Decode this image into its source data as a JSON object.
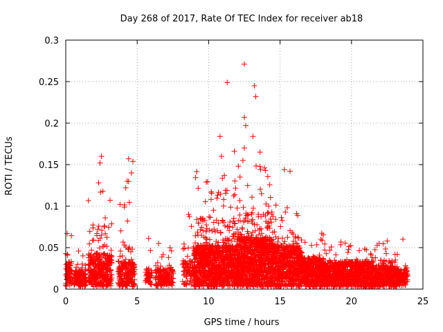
{
  "chart_data": {
    "type": "scatter",
    "title": "Day 268 of 2017, Rate Of TEC Index for receiver ab18",
    "xlabel": "GPS time / hours",
    "ylabel": "ROTI / TECUs",
    "xlim": [
      0,
      25
    ],
    "ylim": [
      0,
      0.3
    ],
    "xticks": [
      "0",
      "5",
      "10",
      "15",
      "20",
      "25"
    ],
    "yticks": [
      "0",
      "0.05",
      "0.1",
      "0.15",
      "0.2",
      "0.25",
      "0.3"
    ],
    "grid": true,
    "marker": "+",
    "color": "#ff0000",
    "notable_points": [
      {
        "x": 12.5,
        "y": 0.271
      },
      {
        "x": 11.3,
        "y": 0.249
      },
      {
        "x": 13.2,
        "y": 0.245
      },
      {
        "x": 13.3,
        "y": 0.232
      },
      {
        "x": 12.5,
        "y": 0.207
      },
      {
        "x": 12.6,
        "y": 0.197
      },
      {
        "x": 10.8,
        "y": 0.184
      },
      {
        "x": 13.1,
        "y": 0.184
      },
      {
        "x": 12.5,
        "y": 0.17
      },
      {
        "x": 11.8,
        "y": 0.166
      },
      {
        "x": 13.6,
        "y": 0.165
      },
      {
        "x": 10.9,
        "y": 0.16
      },
      {
        "x": 2.5,
        "y": 0.16
      },
      {
        "x": 4.4,
        "y": 0.157
      },
      {
        "x": 4.7,
        "y": 0.154
      },
      {
        "x": 12.4,
        "y": 0.155
      },
      {
        "x": 2.4,
        "y": 0.152
      },
      {
        "x": 13.9,
        "y": 0.146
      },
      {
        "x": 15.3,
        "y": 0.144
      },
      {
        "x": 15.7,
        "y": 0.142
      },
      {
        "x": 4.6,
        "y": 0.14
      },
      {
        "x": 11.1,
        "y": 0.137
      },
      {
        "x": 12.2,
        "y": 0.135
      },
      {
        "x": 4.3,
        "y": 0.13
      },
      {
        "x": 2.3,
        "y": 0.128
      },
      {
        "x": 4.2,
        "y": 0.122
      },
      {
        "x": 2.6,
        "y": 0.118
      },
      {
        "x": 13.7,
        "y": 0.115
      },
      {
        "x": 3.1,
        "y": 0.107
      },
      {
        "x": 3.8,
        "y": 0.102
      },
      {
        "x": 14.2,
        "y": 0.1
      },
      {
        "x": 15.5,
        "y": 0.098
      },
      {
        "x": 8.6,
        "y": 0.09
      },
      {
        "x": 9.6,
        "y": 0.085
      },
      {
        "x": 0.1,
        "y": 0.067
      },
      {
        "x": 5.8,
        "y": 0.061
      },
      {
        "x": 23.6,
        "y": 0.06
      },
      {
        "x": 22.5,
        "y": 0.058
      },
      {
        "x": 6.5,
        "y": 0.055
      },
      {
        "x": 7.4,
        "y": 0.046
      }
    ],
    "clusters": [
      {
        "x_range": [
          0.0,
          0.4
        ],
        "y_floor": 0.003,
        "y_max": 0.065,
        "density": 8,
        "peak": 0.03
      },
      {
        "x_range": [
          0.6,
          1.4
        ],
        "y_floor": 0.003,
        "y_max": 0.05,
        "density": 8,
        "peak": 0.02
      },
      {
        "x_range": [
          1.6,
          3.2
        ],
        "y_floor": 0.003,
        "y_max": 0.13,
        "density": 10,
        "peak": 0.04
      },
      {
        "x_range": [
          3.7,
          4.8
        ],
        "y_floor": 0.003,
        "y_max": 0.14,
        "density": 9,
        "peak": 0.03
      },
      {
        "x_range": [
          5.6,
          6.0
        ],
        "y_floor": 0.005,
        "y_max": 0.05,
        "density": 5,
        "peak": 0.02
      },
      {
        "x_range": [
          6.3,
          7.5
        ],
        "y_floor": 0.004,
        "y_max": 0.05,
        "density": 6,
        "peak": 0.02
      },
      {
        "x_range": [
          8.2,
          9.0
        ],
        "y_floor": 0.005,
        "y_max": 0.09,
        "density": 5,
        "peak": 0.03
      },
      {
        "x_range": [
          9.0,
          12.0
        ],
        "y_floor": 0.003,
        "y_max": 0.14,
        "density": 16,
        "peak": 0.05
      },
      {
        "x_range": [
          12.0,
          14.5
        ],
        "y_floor": 0.003,
        "y_max": 0.15,
        "density": 18,
        "peak": 0.06
      },
      {
        "x_range": [
          14.5,
          16.5
        ],
        "y_floor": 0.003,
        "y_max": 0.1,
        "density": 14,
        "peak": 0.05
      },
      {
        "x_range": [
          16.5,
          18.0
        ],
        "y_floor": 0.003,
        "y_max": 0.065,
        "density": 12,
        "peak": 0.035
      },
      {
        "x_range": [
          18.0,
          21.5
        ],
        "y_floor": 0.003,
        "y_max": 0.055,
        "density": 12,
        "peak": 0.03
      },
      {
        "x_range": [
          21.5,
          23.2
        ],
        "y_floor": 0.003,
        "y_max": 0.055,
        "density": 10,
        "peak": 0.025
      },
      {
        "x_range": [
          23.2,
          23.9
        ],
        "y_floor": 0.004,
        "y_max": 0.045,
        "density": 7,
        "peak": 0.02
      }
    ]
  }
}
